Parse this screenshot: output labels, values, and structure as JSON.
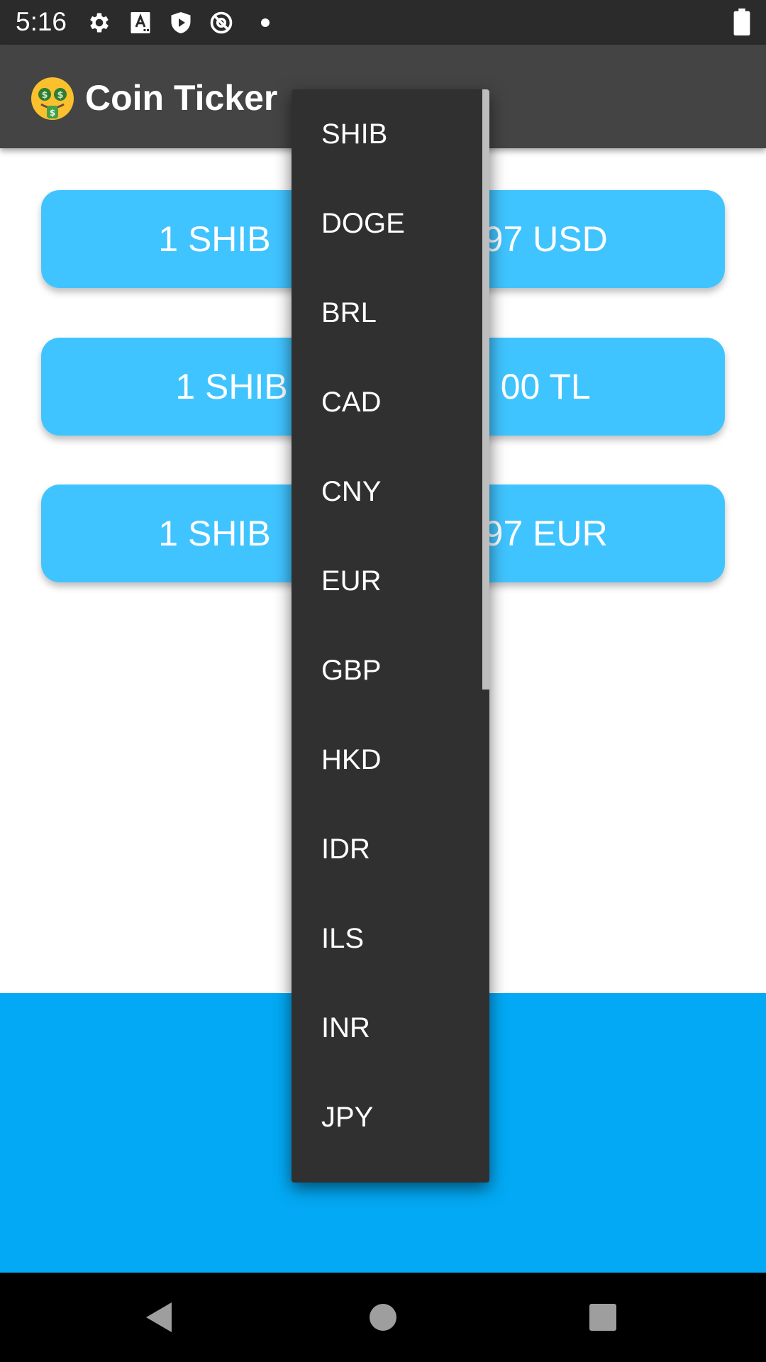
{
  "status_bar": {
    "time": "5:16",
    "icons": [
      "gear-icon",
      "font-a-icon",
      "shield-play-icon",
      "at-sign-off-icon",
      "dot-icon",
      "battery-icon"
    ]
  },
  "app_bar": {
    "logo": "money-mouth-face-icon",
    "title": "Coin Ticker"
  },
  "cards": [
    {
      "left": "1 SHIB",
      "right": "97 USD"
    },
    {
      "left": "1 SHIB",
      "right": "00 TL"
    },
    {
      "left": "1 SHIB",
      "right": "97 EUR"
    }
  ],
  "dropdown": {
    "items": [
      "SHIB",
      "DOGE",
      "BRL",
      "CAD",
      "CNY",
      "EUR",
      "GBP",
      "HKD",
      "IDR",
      "ILS",
      "INR",
      "JPY"
    ]
  },
  "nav_bar": {
    "icons": [
      "back-icon",
      "home-icon",
      "recents-icon"
    ]
  },
  "colors": {
    "card": "#40c4ff",
    "bottom_panel": "#03a9f4",
    "app_bar": "#444444",
    "dropdown": "#303030"
  }
}
